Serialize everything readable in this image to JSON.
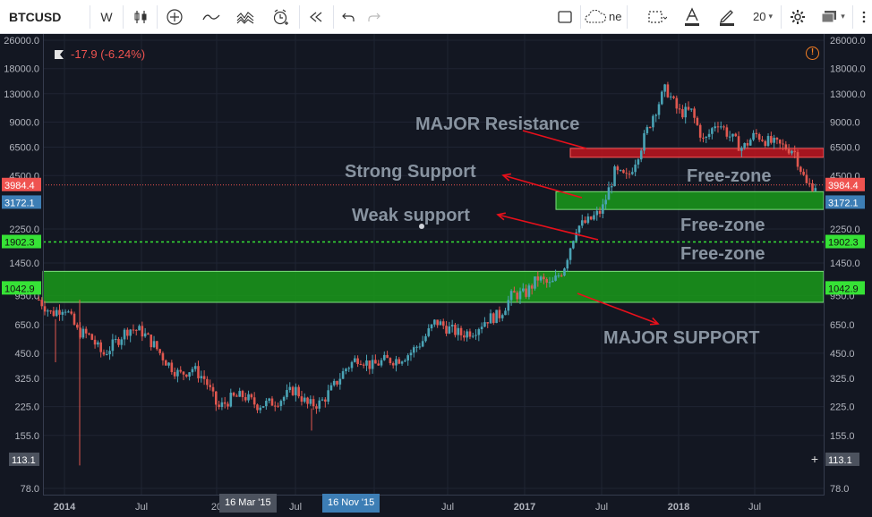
{
  "toolbar": {
    "symbol": "BTCUSD",
    "interval": "W",
    "partial_label": "ne",
    "font_size_value": "20"
  },
  "status": {
    "change": "-17.9 (-6.24%)"
  },
  "price_axis": {
    "ticks": [
      "26000.0",
      "18000.0",
      "13000.0",
      "9000.0",
      "6500.0",
      "4500.0",
      "2250.0",
      "1450.0",
      "950.0",
      "650.0",
      "450.0",
      "325.0",
      "225.0",
      "155.0",
      "78.0"
    ],
    "current_price_label": "3984.4",
    "level_blue": "3172.1",
    "level_green_1": "1902.3",
    "level_green_2": "1042.9",
    "crosshair_price": "113.1"
  },
  "time_axis": {
    "ticks": [
      "2014",
      "Jul",
      "20",
      "Jul",
      "5",
      "Jul",
      "2017",
      "Jul",
      "2018",
      "Jul"
    ],
    "tag_left": "16 Mar '15",
    "tag_right": "16 Nov '15"
  },
  "annotations": {
    "major_resistance": "MAJOR Resistance",
    "strong_support": "Strong Support",
    "weak_support": "Weak support",
    "free_zone_1": "Free-zone",
    "free_zone_2": "Free-zone",
    "free_zone_3": "Free-zone",
    "major_support": "MAJOR SUPPORT"
  },
  "chart_data": {
    "type": "candlestick",
    "symbol": "BTCUSD",
    "interval": "W",
    "y_scale": "log",
    "ylim": [
      78,
      26000
    ],
    "x_range": [
      "2013-10",
      "2018-11"
    ],
    "series": [
      {
        "name": "BTCUSD",
        "points": [
          [
            "2013-11",
            900
          ],
          [
            "2013-12",
            750
          ],
          [
            "2014-01",
            830
          ],
          [
            "2014-02",
            600
          ],
          [
            "2014-03",
            560
          ],
          [
            "2014-04",
            440
          ],
          [
            "2014-05",
            520
          ],
          [
            "2014-06",
            620
          ],
          [
            "2014-07",
            600
          ],
          [
            "2014-08",
            500
          ],
          [
            "2014-09",
            400
          ],
          [
            "2014-10",
            340
          ],
          [
            "2014-11",
            370
          ],
          [
            "2014-12",
            320
          ],
          [
            "2015-01",
            220
          ],
          [
            "2015-02",
            250
          ],
          [
            "2015-03",
            260
          ],
          [
            "2015-04",
            230
          ],
          [
            "2015-05",
            235
          ],
          [
            "2015-06",
            250
          ],
          [
            "2015-07",
            285
          ],
          [
            "2015-08",
            230
          ],
          [
            "2015-09",
            235
          ],
          [
            "2015-10",
            290
          ],
          [
            "2015-11",
            370
          ],
          [
            "2015-12",
            430
          ],
          [
            "2016-01",
            380
          ],
          [
            "2016-02",
            410
          ],
          [
            "2016-03",
            415
          ],
          [
            "2016-04",
            450
          ],
          [
            "2016-05",
            530
          ],
          [
            "2016-06",
            680
          ],
          [
            "2016-07",
            620
          ],
          [
            "2016-08",
            575
          ],
          [
            "2016-09",
            605
          ],
          [
            "2016-10",
            700
          ],
          [
            "2016-11",
            740
          ],
          [
            "2016-12",
            960
          ],
          [
            "2017-01",
            970
          ],
          [
            "2017-02",
            1190
          ],
          [
            "2017-03",
            1080
          ],
          [
            "2017-04",
            1350
          ],
          [
            "2017-05",
            2300
          ],
          [
            "2017-06",
            2500
          ],
          [
            "2017-07",
            2870
          ],
          [
            "2017-08",
            4700
          ],
          [
            "2017-09",
            4340
          ],
          [
            "2017-10",
            6400
          ],
          [
            "2017-11",
            9900
          ],
          [
            "2017-12",
            14000
          ],
          [
            "2018-01",
            10200
          ],
          [
            "2018-02",
            10300
          ],
          [
            "2018-03",
            6900
          ],
          [
            "2018-04",
            9200
          ],
          [
            "2018-05",
            7500
          ],
          [
            "2018-06",
            6400
          ],
          [
            "2018-07",
            7700
          ],
          [
            "2018-08",
            7000
          ],
          [
            "2018-09",
            6600
          ],
          [
            "2018-10",
            6300
          ],
          [
            "2018-11",
            3984.4
          ]
        ]
      }
    ],
    "horizontal_levels": [
      1902.3
    ],
    "zones": [
      {
        "label": "MAJOR Resistance",
        "from": 5700,
        "to": 6400,
        "color": "#c0151e"
      },
      {
        "label": "Strong Support",
        "from": 2900,
        "to": 3650,
        "color": "#1a9a1a"
      },
      {
        "label": "MAJOR SUPPORT",
        "from": 870,
        "to": 1300,
        "color": "#1a9a1a"
      }
    ]
  },
  "colors": {
    "background": "#131722",
    "up": "#4aa3b5",
    "down": "#e0574f",
    "level_green": "#36e236",
    "resistance": "#b5151e",
    "support": "#14a014",
    "annotation_text": "#8893a0",
    "arrow": "#e8101b"
  }
}
